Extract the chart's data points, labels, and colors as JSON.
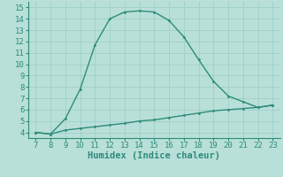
{
  "line1_x": [
    7,
    8,
    9,
    10,
    11,
    12,
    13,
    14,
    15,
    16,
    17,
    18,
    19,
    20,
    21,
    22,
    23
  ],
  "line1_y": [
    4.0,
    3.85,
    5.2,
    7.8,
    11.7,
    14.0,
    14.6,
    14.7,
    14.6,
    13.85,
    12.4,
    10.4,
    8.5,
    7.2,
    6.7,
    6.2,
    6.4
  ],
  "line2_x": [
    7,
    8,
    9,
    10,
    11,
    12,
    13,
    14,
    15,
    16,
    17,
    18,
    19,
    20,
    21,
    22,
    23
  ],
  "line2_y": [
    4.0,
    3.85,
    4.2,
    4.35,
    4.5,
    4.65,
    4.8,
    5.0,
    5.1,
    5.3,
    5.5,
    5.7,
    5.9,
    6.0,
    6.1,
    6.2,
    6.4
  ],
  "line_color": "#2e8b7a",
  "bg_color": "#b8e0d8",
  "grid_color": "#99ccc4",
  "xlabel": "Humidex (Indice chaleur)",
  "xlim": [
    6.5,
    23.5
  ],
  "ylim": [
    3.5,
    15.5
  ],
  "xticks": [
    7,
    8,
    9,
    10,
    11,
    12,
    13,
    14,
    15,
    16,
    17,
    18,
    19,
    20,
    21,
    22,
    23
  ],
  "yticks": [
    4,
    5,
    6,
    7,
    8,
    9,
    10,
    11,
    12,
    13,
    14,
    15
  ],
  "xlabel_fontsize": 7.5,
  "tick_fontsize": 6.5
}
